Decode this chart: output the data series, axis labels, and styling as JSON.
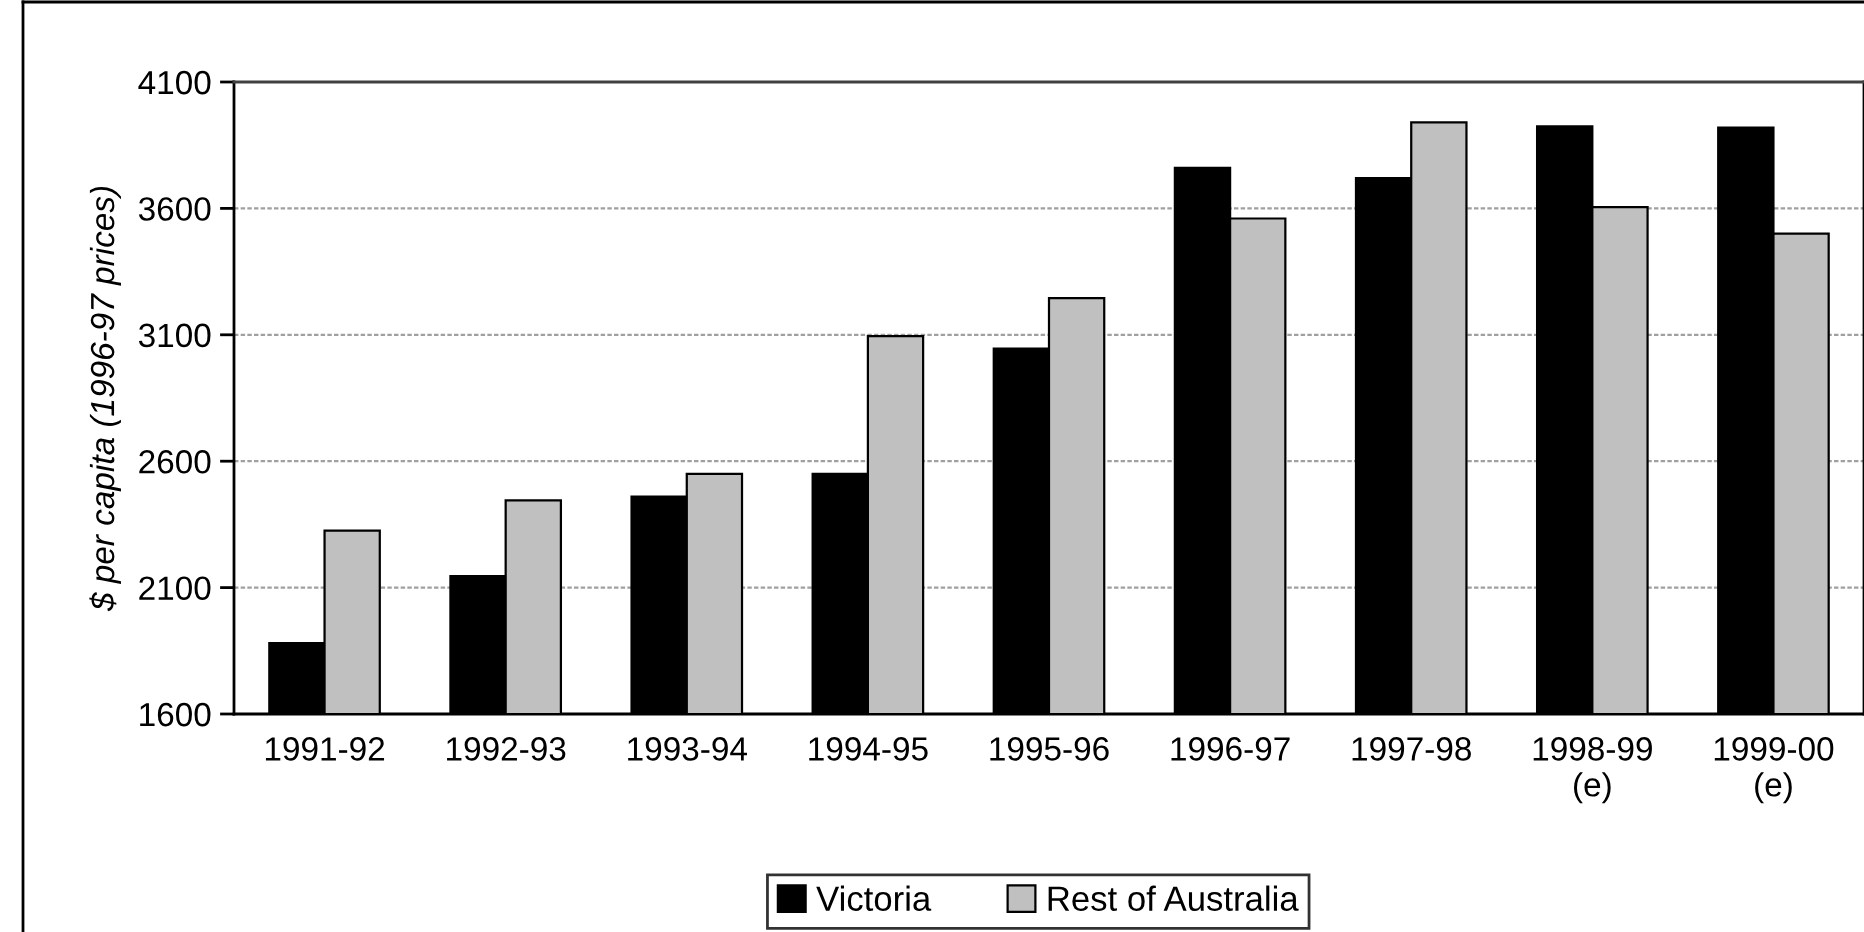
{
  "chart_data": {
    "type": "bar",
    "ylabel": "$ per capita (1996-97 prices)",
    "categories": [
      "1991-92",
      "1992-93",
      "1993-94",
      "1994-95",
      "1995-96",
      "1996-97",
      "1997-98",
      "1998-99\n(e)",
      "1999-00\n(e)"
    ],
    "series": [
      {
        "name": "Victoria",
        "color": "#000000",
        "values": [
          1880,
          2145,
          2460,
          2550,
          3045,
          3760,
          3720,
          3925,
          3920
        ]
      },
      {
        "name": "Rest of Australia",
        "color": "#c0c0c0",
        "values": [
          2325,
          2445,
          2550,
          3095,
          3245,
          3560,
          3940,
          3605,
          3500
        ]
      }
    ],
    "ylim": [
      1600,
      4100
    ],
    "yticks": [
      1600,
      2100,
      2600,
      3100,
      3600,
      4100
    ],
    "grid": "y",
    "legend": "bottom"
  }
}
